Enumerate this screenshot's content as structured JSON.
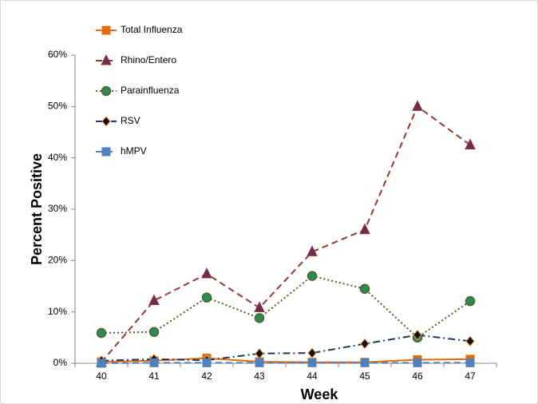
{
  "chart_data": {
    "type": "line",
    "x_label": "Week",
    "y_label": "Percent Positive",
    "categories": [
      "40",
      "41",
      "42",
      "43",
      "44",
      "45",
      "46",
      "47"
    ],
    "ylim": [
      0,
      60
    ],
    "yticks": [
      {
        "value": 0,
        "label": "0%"
      },
      {
        "value": 10,
        "label": "10%"
      },
      {
        "value": 20,
        "label": "20%"
      },
      {
        "value": 30,
        "label": "30%"
      },
      {
        "value": 40,
        "label": "40%"
      },
      {
        "value": 50,
        "label": "50%"
      },
      {
        "value": 60,
        "label": "60%"
      }
    ],
    "legend": "top-left",
    "series": [
      {
        "name": "Total Influenza",
        "color": "#e46c0a",
        "dash": "solid",
        "marker": "square",
        "values": [
          0.3,
          0.5,
          1.0,
          0.3,
          0.2,
          0.2,
          0.7,
          0.8
        ]
      },
      {
        "name": "Rhino/Entero",
        "color": "#953735",
        "dash": "dashed",
        "marker": "triangle",
        "values": [
          0.2,
          12.2,
          17.4,
          10.8,
          21.7,
          26.0,
          50.0,
          42.5
        ]
      },
      {
        "name": "Parainfluenza",
        "color": "#4f6228",
        "dash": "dotted",
        "marker": "circle",
        "values": [
          5.9,
          6.1,
          12.8,
          8.8,
          17.0,
          14.5,
          5.0,
          12.1
        ]
      },
      {
        "name": "RSV",
        "color": "#1f3864",
        "dash": "dashdot",
        "marker": "diamond",
        "values": [
          0.5,
          0.8,
          0.6,
          1.9,
          2.0,
          3.8,
          5.5,
          4.3
        ]
      },
      {
        "name": "hMPV",
        "color": "#4f81bd",
        "dash": "dashed",
        "marker": "square",
        "values": [
          0.0,
          0.1,
          0.1,
          0.1,
          0.1,
          0.1,
          0.1,
          0.1
        ]
      }
    ]
  }
}
